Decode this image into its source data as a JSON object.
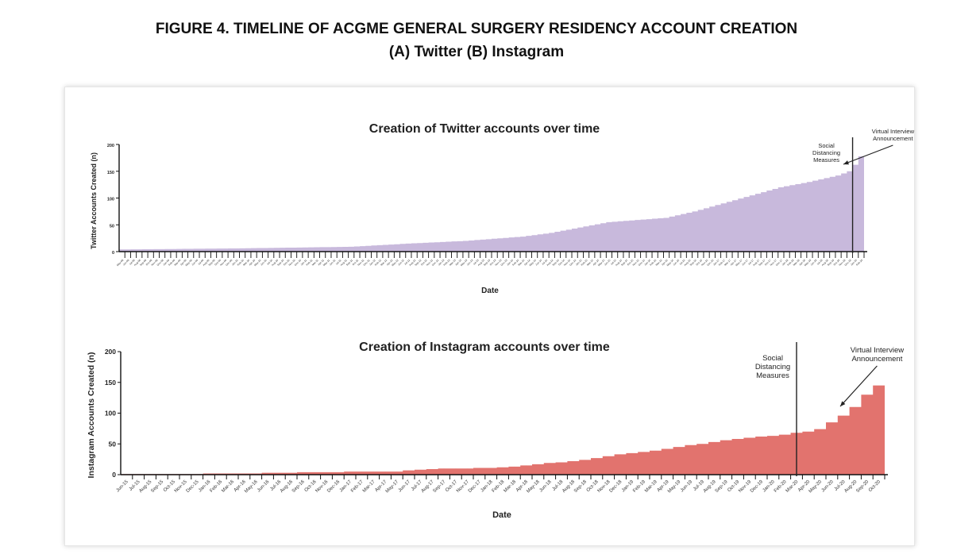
{
  "figure": {
    "title_line1": "FIGURE 4. TIMELINE OF ACGME GENERAL SURGERY RESIDENCY ACCOUNT CREATION",
    "title_line2": "(A) Twitter (B) Instagram"
  },
  "chart_data": [
    {
      "type": "area",
      "title": "Creation of Twitter accounts over time",
      "xlabel": "Date",
      "ylabel": "Twitter Accounts Created (n)",
      "ylim": [
        0,
        200
      ],
      "yticks": [
        0,
        50,
        100,
        150,
        200
      ],
      "color": "#c8b9dc",
      "n_points": 130,
      "x_start": "May-08",
      "x_end": "Oct-20",
      "knots": [
        {
          "i": 0,
          "v": 4
        },
        {
          "i": 20,
          "v": 6
        },
        {
          "i": 40,
          "v": 9
        },
        {
          "i": 50,
          "v": 15
        },
        {
          "i": 60,
          "v": 20
        },
        {
          "i": 70,
          "v": 28
        },
        {
          "i": 75,
          "v": 35
        },
        {
          "i": 80,
          "v": 45
        },
        {
          "i": 85,
          "v": 55
        },
        {
          "i": 95,
          "v": 63
        },
        {
          "i": 100,
          "v": 75
        },
        {
          "i": 105,
          "v": 90
        },
        {
          "i": 110,
          "v": 105
        },
        {
          "i": 115,
          "v": 120
        },
        {
          "i": 120,
          "v": 130
        },
        {
          "i": 125,
          "v": 142
        },
        {
          "i": 127,
          "v": 150
        },
        {
          "i": 128,
          "v": 162
        },
        {
          "i": 129,
          "v": 178
        }
      ],
      "annotations": [
        {
          "text": [
            "Social",
            "Distancing",
            "Measures"
          ],
          "index": 127.5
        },
        {
          "text": [
            "Virtual Interview",
            "Announcement"
          ],
          "index": 129
        }
      ]
    },
    {
      "type": "area",
      "title": "Creation of Instagram accounts over time",
      "xlabel": "Date",
      "ylabel": "Instagram Accounts Created (n)",
      "ylim": [
        0,
        200
      ],
      "yticks": [
        0,
        50,
        100,
        150,
        200
      ],
      "color": "#e2736e",
      "categories": [
        "Jun-15",
        "Jul-15",
        "Aug-15",
        "Sep-15",
        "Oct-15",
        "Nov-15",
        "Dec-15",
        "Jan-16",
        "Feb-16",
        "Mar-16",
        "Apr-16",
        "May-16",
        "Jun-16",
        "Jul-16",
        "Aug-16",
        "Sep-16",
        "Oct-16",
        "Nov-16",
        "Dec-16",
        "Jan-17",
        "Feb-17",
        "Mar-17",
        "Apr-17",
        "May-17",
        "Jun-17",
        "Jul-17",
        "Aug-17",
        "Sep-17",
        "Oct-17",
        "Nov-17",
        "Dec-17",
        "Jan-18",
        "Feb-18",
        "Mar-18",
        "Apr-18",
        "May-18",
        "Jun-18",
        "Jul-18",
        "Aug-18",
        "Sep-18",
        "Oct-18",
        "Nov-18",
        "Dec-18",
        "Jan-19",
        "Feb-19",
        "Mar-19",
        "Apr-19",
        "May-19",
        "Jun-19",
        "Jul-19",
        "Aug-19",
        "Sep-19",
        "Oct-19",
        "Nov-19",
        "Dec-19",
        "Jan-20",
        "Feb-20",
        "Mar-20",
        "Apr-20",
        "May-20",
        "Jun-20",
        "Jul-20",
        "Aug-20",
        "Sep-20",
        "Oct-20"
      ],
      "values": [
        1,
        1,
        1,
        1,
        1,
        1,
        1,
        2,
        2,
        2,
        2,
        2,
        3,
        3,
        3,
        4,
        4,
        4,
        4,
        5,
        5,
        5,
        5,
        5,
        7,
        8,
        9,
        10,
        10,
        10,
        11,
        11,
        12,
        13,
        15,
        17,
        19,
        20,
        22,
        24,
        27,
        30,
        33,
        35,
        37,
        39,
        42,
        45,
        48,
        50,
        53,
        56,
        58,
        60,
        62,
        63,
        65,
        68,
        70,
        74,
        85,
        96,
        110,
        130,
        145
      ],
      "annotations": [
        {
          "text": [
            "Social",
            "Distancing",
            "Measures"
          ],
          "category": "Mar-20"
        },
        {
          "text": [
            "Virtual Interview",
            "Announcement"
          ],
          "category": "Jun-20"
        }
      ]
    }
  ]
}
